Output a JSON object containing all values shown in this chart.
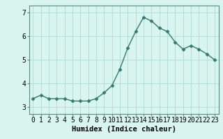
{
  "x": [
    0,
    1,
    2,
    3,
    4,
    5,
    6,
    7,
    8,
    9,
    10,
    11,
    12,
    13,
    14,
    15,
    16,
    17,
    18,
    19,
    20,
    21,
    22,
    23
  ],
  "y": [
    3.35,
    3.5,
    3.35,
    3.35,
    3.35,
    3.25,
    3.25,
    3.25,
    3.35,
    3.6,
    3.9,
    4.6,
    5.5,
    6.2,
    6.8,
    6.65,
    6.35,
    6.2,
    5.75,
    5.45,
    5.6,
    5.45,
    5.25,
    5.0
  ],
  "line_color": "#2d7d6e",
  "marker": "D",
  "marker_size": 2.5,
  "bg_color": "#d8f5ef",
  "grid_color": "#b8ddd8",
  "xlabel": "Humidex (Indice chaleur)",
  "xlabel_fontsize": 7.5,
  "tick_fontsize": 7,
  "ylim": [
    2.7,
    7.3
  ],
  "xlim": [
    -0.5,
    23.5
  ],
  "yticks": [
    3,
    4,
    5,
    6,
    7
  ],
  "xticks": [
    0,
    1,
    2,
    3,
    4,
    5,
    6,
    7,
    8,
    9,
    10,
    11,
    12,
    13,
    14,
    15,
    16,
    17,
    18,
    19,
    20,
    21,
    22,
    23
  ],
  "spine_color": "#5a8a80",
  "linewidth": 1.0
}
